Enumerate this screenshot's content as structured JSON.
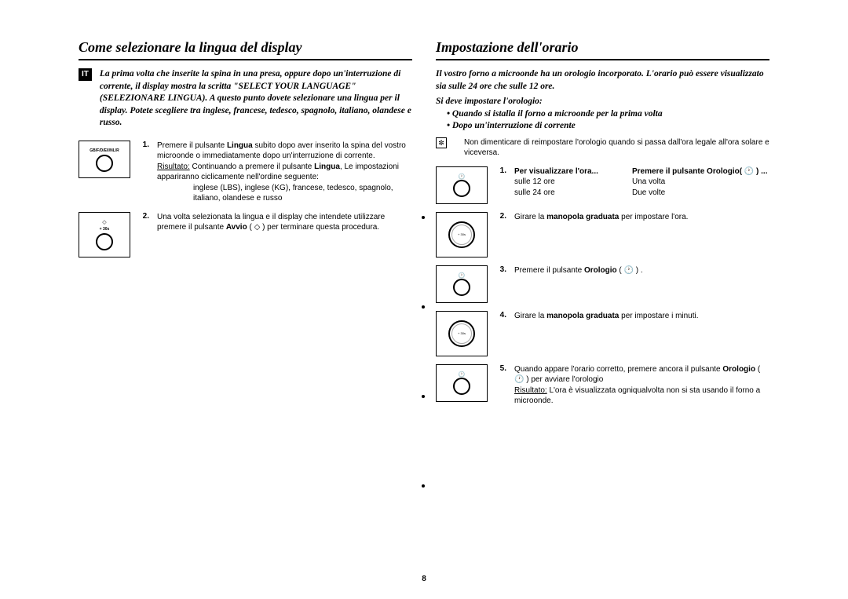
{
  "page_number": "8",
  "left": {
    "heading": "Come selezionare la lingua del display",
    "badge": "IT",
    "intro": "La prima volta che inserite la spina in una presa, oppure dopo un'interruzione di corrente, il display mostra la scritta \"SELECT YOUR LANGUAGE\" (SELEZIONARE LINGUA). A questo punto dovete selezionare una lingua per il display. Potete scegliere tra inglese, francese, tedesco, spagnolo, italiano, olandese e russo.",
    "step1_num": "1.",
    "step1_a": "Premere il pulsante ",
    "step1_b": "Lingua",
    "step1_c": " subito dopo aver inserito la spina del vostro microonde o immediatamente dopo un'interruzione di corrente.",
    "step1_res_lbl": "Risultato:",
    "step1_res_a": " Continuando a premere il pulsante ",
    "step1_res_b": "Lingua",
    "step1_res_c": ", Le impostazioni appariranno ciclicamente nell'ordine seguente:",
    "step1_langs": "inglese (LBS), inglese (KG), francese, tedesco, spagnolo, italiano, olandese e russo",
    "step2_num": "2.",
    "step2_a": "Una volta selezionata la lingua e il display che intendete utilizzare premere il pulsante ",
    "step2_b": "Avvio",
    "step2_c": " ( ",
    "step2_d": " ) per terminare questa procedura.",
    "box1_lbl": "GB/F/D/E/I/NL/R",
    "box2_lbl": "+ 30s"
  },
  "right": {
    "heading": "Impostazione dell'orario",
    "intro": "Il vostro forno a microonde ha un orologio incorporato. L'orario può essere visualizzato sia sulle 24 ore che sulle 12 ore.",
    "sub_heading": "Si deve impostare l'orologio:",
    "bullet1": "Quando si istalla il forno a microonde per la prima volta",
    "bullet2": "Dopo un'interruzione di corrente",
    "note": "Non dimenticare di reimpostare l'orologio quando si passa dall'ora legale all'ora solare e viceversa.",
    "t_head1": "Per visualizzare l'ora...",
    "t_head2": "Premere il pulsante Orologio( 🕐 ) ...",
    "t_r1c1": "sulle 12 ore",
    "t_r1c2": "Una volta",
    "t_r2c1": "sulle 24 ore",
    "t_r2c2": "Due volte",
    "s1_num": "1.",
    "s2_num": "2.",
    "s2_a": "Girare la ",
    "s2_b": "manopola graduata",
    "s2_c": " per impostare l'ora.",
    "s3_num": "3.",
    "s3_a": "Premere il pulsante ",
    "s3_b": "Orologio",
    "s3_c": " ( 🕐 ) .",
    "s4_num": "4.",
    "s4_a": "Girare la ",
    "s4_b": "manopola graduata",
    "s4_c": " per impostare i minuti.",
    "s5_num": "5.",
    "s5_a": "Quando appare l'orario corretto, premere ancora il pulsante ",
    "s5_b": "Orologio",
    "s5_c": " ( 🕐 ) per avviare l'orologio",
    "s5_res_lbl": "Risultato:",
    "s5_res": " L'ora è visualizzata ogniqualvolta non si sta usando il forno a microonde.",
    "knob_lbl": "+ 30s"
  }
}
